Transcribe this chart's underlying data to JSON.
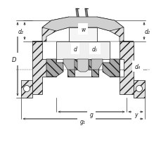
{
  "bg_color": "#ffffff",
  "line_color": "#1a1a1a",
  "labels": {
    "D": "D",
    "d2_left": "d₂",
    "d": "d",
    "w": "w",
    "d5": "d₅",
    "d4": "d₄",
    "d2_right": "d₂",
    "g": "g",
    "g1": "g₁",
    "y": "y"
  }
}
